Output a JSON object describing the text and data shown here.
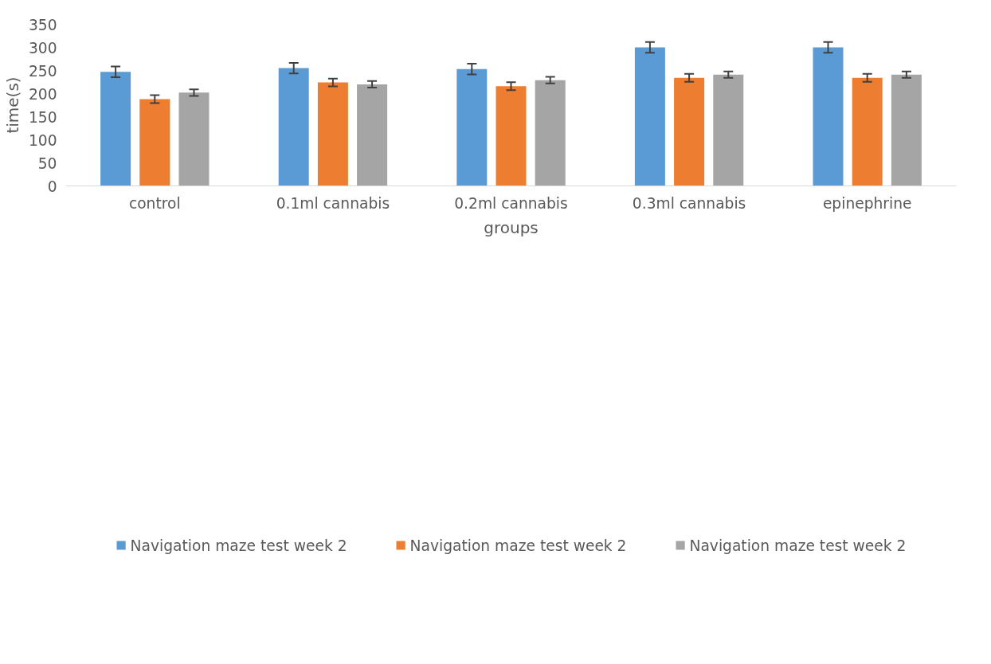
{
  "chart_data": {
    "type": "bar",
    "xlabel": "groups",
    "ylabel": "time(s)",
    "categories": [
      "control",
      "0.1ml cannabis",
      "0.2ml cannabis",
      "0.3ml cannabis",
      "epinephrine"
    ],
    "series": [
      {
        "name": "Navigation maze test week 2",
        "color": "#5b9bd5",
        "values": [
          247,
          255,
          253,
          300,
          300
        ],
        "errors": [
          11.5,
          11.5,
          11.5,
          11.5,
          11.5
        ]
      },
      {
        "name": "Navigation maze test week 2",
        "color": "#ed7d31",
        "values": [
          188,
          224,
          216,
          234,
          234
        ],
        "errors": [
          8.5,
          8.5,
          8.5,
          8.5,
          8.5
        ]
      },
      {
        "name": "Navigation maze test week 2",
        "color": "#a5a5a5",
        "values": [
          202,
          220,
          229,
          241,
          241
        ],
        "errors": [
          7,
          7,
          7,
          7,
          7
        ]
      }
    ],
    "ylim": [
      0,
      350
    ],
    "yticks": [
      0,
      50,
      100,
      150,
      200,
      250,
      300,
      350
    ],
    "grid": false,
    "legend": "bottom"
  }
}
